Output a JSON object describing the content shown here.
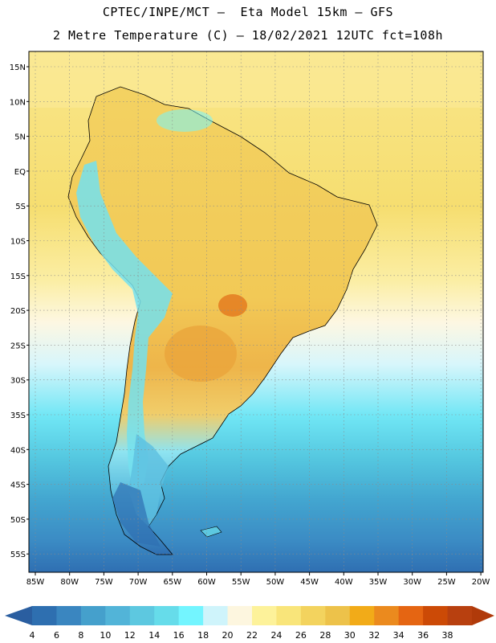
{
  "header": {
    "line1": "CPTEC/INPE/MCT –  Eta Model 15km – GFS",
    "line2": "2 Metre Temperature (C) – 18/02/2021 12UTC fct=108h"
  },
  "map": {
    "lat_labels": [
      "15N",
      "10N",
      "5N",
      "EQ",
      "5S",
      "10S",
      "15S",
      "20S",
      "25S",
      "30S",
      "35S",
      "40S",
      "45S",
      "50S",
      "55S"
    ],
    "lon_labels": [
      "85W",
      "80W",
      "75W",
      "70W",
      "65W",
      "60W",
      "55W",
      "50W",
      "45W",
      "40W",
      "35W",
      "30W",
      "25W",
      "20W"
    ]
  },
  "colorbar": {
    "levels": [
      "4",
      "6",
      "8",
      "10",
      "12",
      "14",
      "16",
      "18",
      "20",
      "22",
      "24",
      "26",
      "28",
      "30",
      "32",
      "34",
      "36",
      "38"
    ],
    "colors": [
      "#2e6fb0",
      "#3a86c0",
      "#45a0cc",
      "#52b4d8",
      "#5dc8e0",
      "#66dcea",
      "#73f5ff",
      "#cff4fb",
      "#fdf6df",
      "#fdf29a",
      "#f9e57a",
      "#f3d35e",
      "#edc24a",
      "#f2ab18",
      "#eb8a1e",
      "#e56512",
      "#cc4a06",
      "#b8400f"
    ],
    "left_end_color": "#2a5ea0",
    "right_end_color": "#b03a0a"
  }
}
